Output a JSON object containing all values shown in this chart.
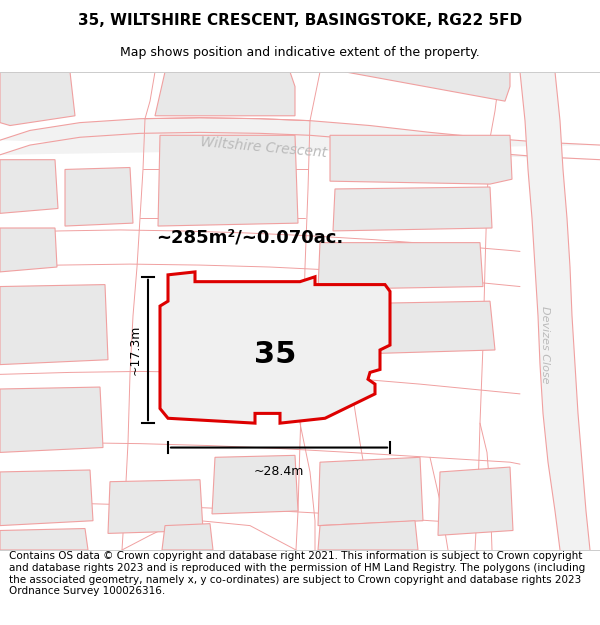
{
  "title": "35, WILTSHIRE CRESCENT, BASINGSTOKE, RG22 5FD",
  "subtitle": "Map shows position and indicative extent of the property.",
  "footer": "Contains OS data © Crown copyright and database right 2021. This information is subject to Crown copyright and database rights 2023 and is reproduced with the permission of HM Land Registry. The polygons (including the associated geometry, namely x, y co-ordinates) are subject to Crown copyright and database rights 2023 Ordnance Survey 100026316.",
  "area_text": "~285m²/~0.070ac.",
  "width_text": "~28.4m",
  "height_text": "~17.3m",
  "plot_number": "35",
  "road_label_1": "Wiltshire Crescent",
  "road_label_2": "Devizes Close",
  "road_line_color": "#f0a0a0",
  "road_fill_color": "#f8e8e8",
  "building_color": "#e8e8e8",
  "building_edge": "#d0b0b0",
  "highlight_color": "#dd0000",
  "highlight_fill": "#f0f0f0",
  "title_fontsize": 11,
  "subtitle_fontsize": 9,
  "footer_fontsize": 7.5,
  "map_bg": "#ffffff"
}
